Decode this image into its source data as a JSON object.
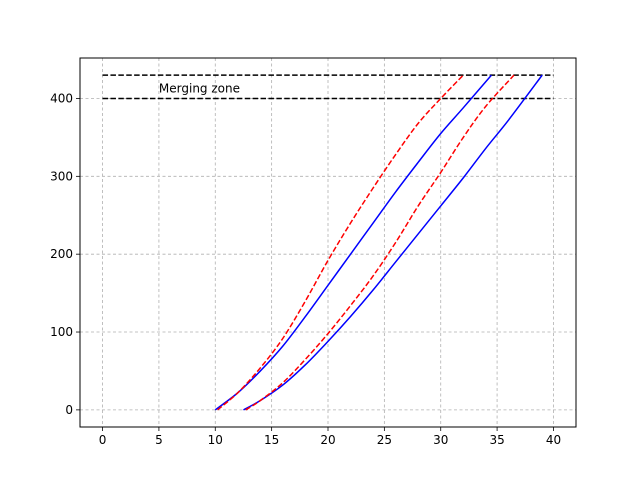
{
  "chart_data": {
    "type": "line",
    "title": "",
    "xlabel": "",
    "ylabel": "",
    "xlim": [
      -2,
      42
    ],
    "ylim": [
      -22,
      452
    ],
    "xticks": [
      0,
      5,
      10,
      15,
      20,
      25,
      30,
      35,
      40
    ],
    "yticks": [
      0,
      100,
      200,
      300,
      400
    ],
    "grid": true,
    "legend": "none",
    "annotation": {
      "text": "Merging zone",
      "x": 5,
      "y": 408
    },
    "colors": {
      "blue": "#0000ff",
      "red": "#ff0000",
      "black": "#000000",
      "grid": "#b0b0b0"
    },
    "hlines": [
      {
        "y": 430,
        "x_start": 0,
        "x_end": 40,
        "style": "dashed",
        "color": "#000000"
      },
      {
        "y": 400,
        "x_start": 0,
        "x_end": 40,
        "style": "dashed",
        "color": "#000000"
      }
    ],
    "series": [
      {
        "style": "solid",
        "color": "#0000ff",
        "x": [
          10,
          12,
          14,
          16,
          18,
          20,
          22,
          24,
          26,
          28,
          30,
          32,
          34.5
        ],
        "y": [
          0,
          22,
          50,
          82,
          120,
          160,
          200,
          240,
          280,
          318,
          355,
          388,
          430
        ]
      },
      {
        "style": "dashed",
        "color": "#ff0000",
        "x": [
          10.2,
          12,
          14,
          16,
          18,
          20,
          22,
          24,
          26,
          28,
          30,
          32
        ],
        "y": [
          0,
          22,
          54,
          92,
          140,
          192,
          240,
          285,
          328,
          368,
          400,
          430
        ]
      },
      {
        "style": "solid",
        "color": "#0000ff",
        "x": [
          12.5,
          14,
          16,
          18,
          20,
          22,
          24,
          26,
          28,
          30,
          32,
          34,
          36,
          39
        ],
        "y": [
          0,
          12,
          32,
          58,
          88,
          120,
          154,
          190,
          226,
          262,
          298,
          336,
          372,
          430
        ]
      },
      {
        "style": "dashed",
        "color": "#ff0000",
        "x": [
          12.7,
          14,
          16,
          18,
          20,
          22,
          24,
          26,
          28,
          30,
          32,
          34,
          36.5
        ],
        "y": [
          0,
          12,
          35,
          65,
          98,
          134,
          172,
          215,
          262,
          305,
          350,
          390,
          430
        ]
      }
    ]
  }
}
